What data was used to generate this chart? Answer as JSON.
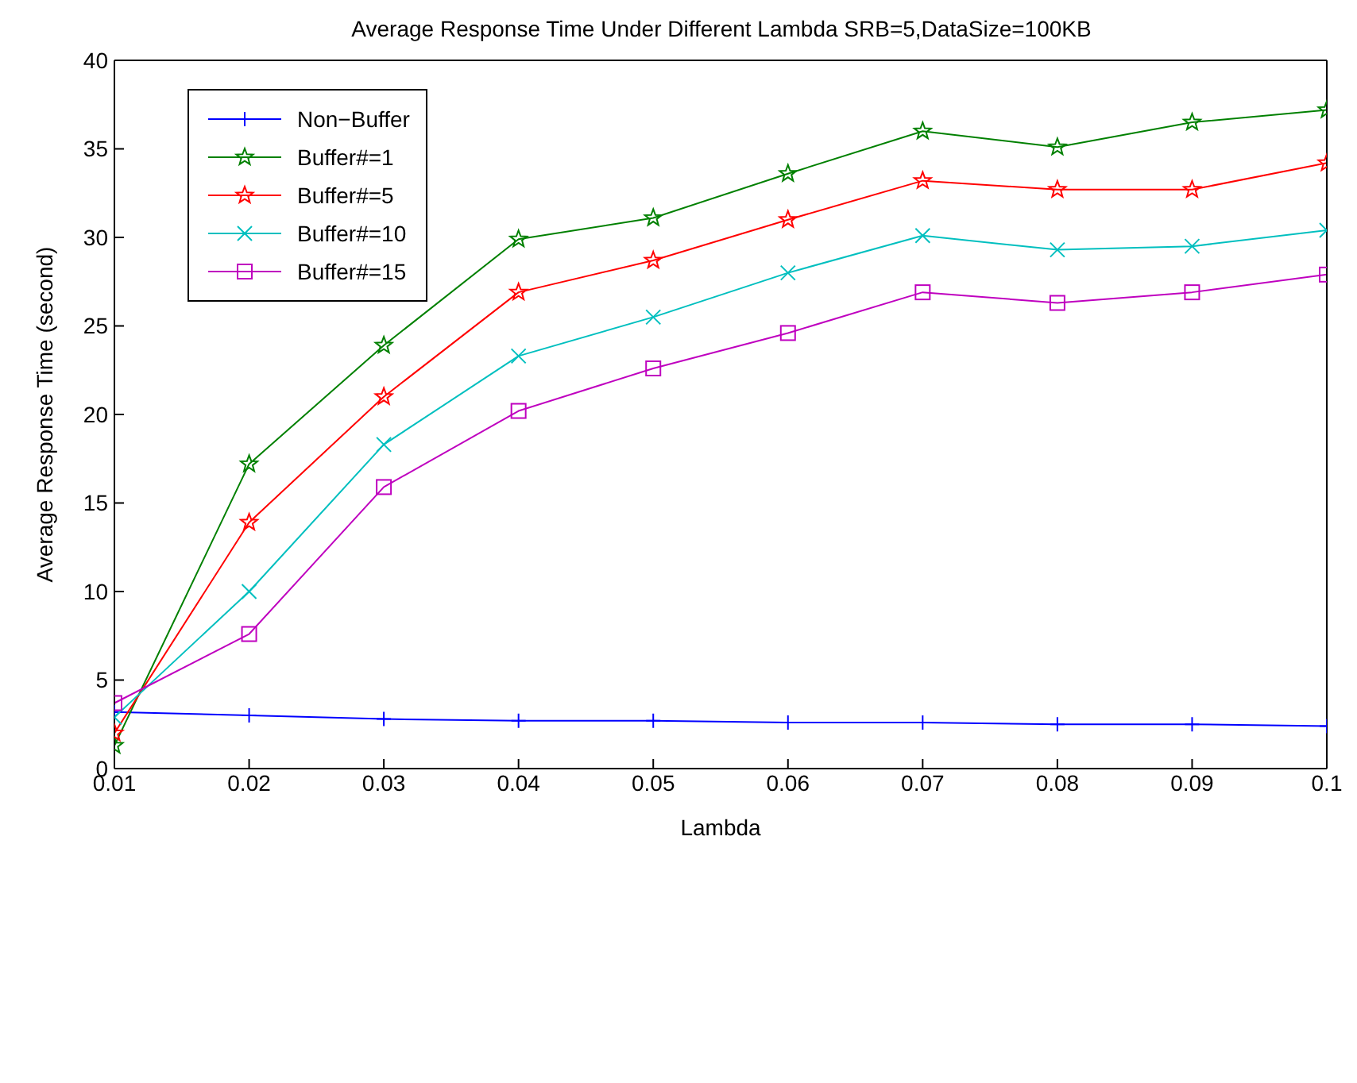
{
  "chart_data": {
    "type": "line",
    "title": "Average Response Time Under Different Lambda SRB=5,DataSize=100KB",
    "xlabel": "Lambda",
    "ylabel": "Average Response Time (second)",
    "x": [
      0.01,
      0.02,
      0.03,
      0.04,
      0.05,
      0.06,
      0.07,
      0.08,
      0.09,
      0.1
    ],
    "series": [
      {
        "name": "Non−Buffer",
        "color": "#0000ff",
        "marker": "plus",
        "values": [
          3.2,
          3.0,
          2.8,
          2.7,
          2.7,
          2.6,
          2.6,
          2.5,
          2.5,
          2.4
        ]
      },
      {
        "name": "Buffer#=1",
        "color": "#008000",
        "marker": "star",
        "values": [
          1.3,
          17.2,
          23.9,
          29.9,
          31.1,
          33.6,
          36.0,
          35.1,
          36.5,
          37.2
        ]
      },
      {
        "name": "Buffer#=5",
        "color": "#ff0000",
        "marker": "star",
        "values": [
          2.0,
          13.9,
          21.0,
          26.9,
          28.7,
          31.0,
          33.2,
          32.7,
          32.7,
          34.2
        ]
      },
      {
        "name": "Buffer#=10",
        "color": "#00bfbf",
        "marker": "cross",
        "values": [
          2.9,
          10.0,
          18.3,
          23.3,
          25.5,
          28.0,
          30.1,
          29.3,
          29.5,
          30.4
        ]
      },
      {
        "name": "Buffer#=15",
        "color": "#bf00bf",
        "marker": "square",
        "values": [
          3.7,
          7.6,
          15.9,
          20.2,
          22.6,
          24.6,
          26.9,
          26.3,
          26.9,
          27.9
        ]
      }
    ],
    "xlim": [
      0.01,
      0.1
    ],
    "xticks": [
      0.01,
      0.02,
      0.03,
      0.04,
      0.05,
      0.06,
      0.07,
      0.08,
      0.09,
      {
        "value": 0.1,
        "label": "0.1"
      }
    ],
    "ylim": [
      0,
      40
    ],
    "yticks": [
      0,
      5,
      10,
      15,
      20,
      25,
      30,
      35,
      40
    ],
    "grid": false,
    "legend": "top left",
    "line_style": "solid"
  }
}
